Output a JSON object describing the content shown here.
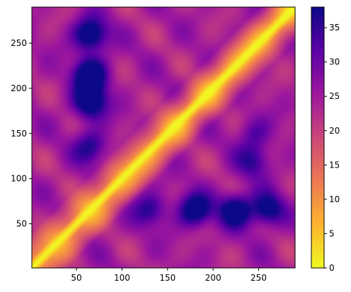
{
  "chart_data": {
    "type": "heatmap",
    "title": "",
    "xlabel": "",
    "ylabel": "",
    "x_range": [
      1,
      290
    ],
    "y_range": [
      1,
      290
    ],
    "x_ticks": [
      50,
      100,
      150,
      200,
      250
    ],
    "y_ticks": [
      50,
      100,
      150,
      200,
      250
    ],
    "colorbar": {
      "colormap": "plasma_r",
      "range": [
        0,
        38
      ],
      "ticks": [
        0,
        5,
        10,
        15,
        20,
        25,
        30,
        35
      ],
      "stops": [
        "#f0f921",
        "#fdb42f",
        "#ed7953",
        "#cc4778",
        "#9c179e",
        "#5c01a6",
        "#0d0887"
      ]
    },
    "diagonal_value": 0,
    "symmetric": false,
    "features": [
      {
        "x": 65,
        "y": 185,
        "value": 34
      },
      {
        "x": 65,
        "y": 215,
        "value": 36
      },
      {
        "x": 65,
        "y": 260,
        "value": 34
      },
      {
        "x": 65,
        "y": 135,
        "value": 27
      },
      {
        "x": 180,
        "y": 65,
        "value": 33
      },
      {
        "x": 225,
        "y": 65,
        "value": 33
      },
      {
        "x": 260,
        "y": 65,
        "value": 31
      },
      {
        "x": 130,
        "y": 65,
        "value": 26
      },
      {
        "x": 245,
        "y": 150,
        "value": 22
      },
      {
        "x": 245,
        "y": 120,
        "value": 25
      }
    ]
  }
}
